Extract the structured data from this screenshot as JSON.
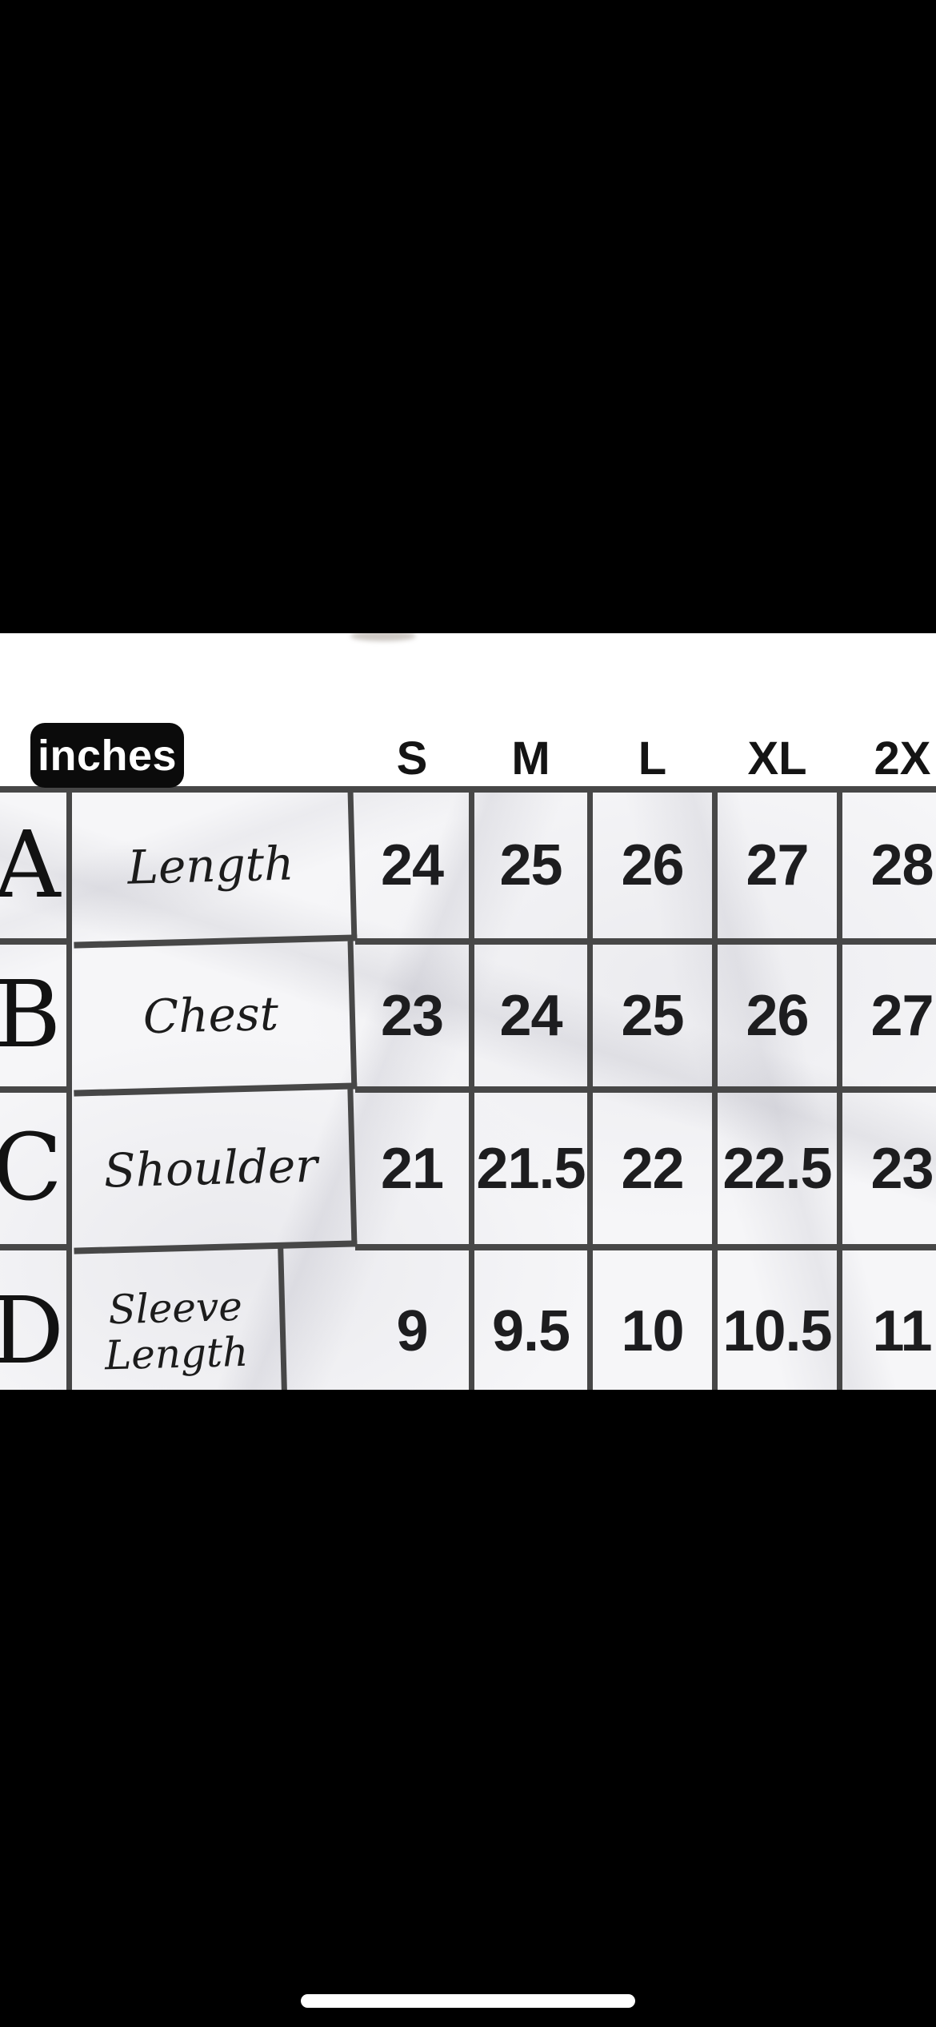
{
  "unit_badge": {
    "label": "inches"
  },
  "size_chart": {
    "unit": "inches",
    "sizes": [
      "S",
      "M",
      "L",
      "XL",
      "2X"
    ],
    "rows": [
      {
        "key": "A",
        "label": "Length",
        "values": [
          "24",
          "25",
          "26",
          "27",
          "28"
        ]
      },
      {
        "key": "B",
        "label": "Chest",
        "values": [
          "23",
          "24",
          "25",
          "26",
          "27"
        ]
      },
      {
        "key": "C",
        "label": "Shoulder",
        "values": [
          "21",
          "21.5",
          "22",
          "22.5",
          "23"
        ]
      },
      {
        "key": "D",
        "label": "Sleeve Length",
        "values": [
          "9",
          "9.5",
          "10",
          "10.5",
          "11"
        ]
      }
    ]
  },
  "colors": {
    "background": "#000000",
    "paper": "#f6f6f8",
    "grid_line": "#474747",
    "badge_bg": "#0b0b0b",
    "badge_text": "#ffffff",
    "text": "#161616",
    "home_indicator": "#ffffff"
  },
  "chart_data": {
    "type": "table",
    "title": "inches",
    "columns": [
      "",
      "",
      "S",
      "M",
      "L",
      "XL",
      "2X"
    ],
    "rows": [
      [
        "A",
        "Length",
        24,
        25,
        26,
        27,
        28
      ],
      [
        "B",
        "Chest",
        23,
        24,
        25,
        26,
        27
      ],
      [
        "C",
        "Shoulder",
        21,
        21.5,
        22,
        22.5,
        23
      ],
      [
        "D",
        "Sleeve Length",
        9,
        9.5,
        10,
        10.5,
        11
      ]
    ]
  }
}
